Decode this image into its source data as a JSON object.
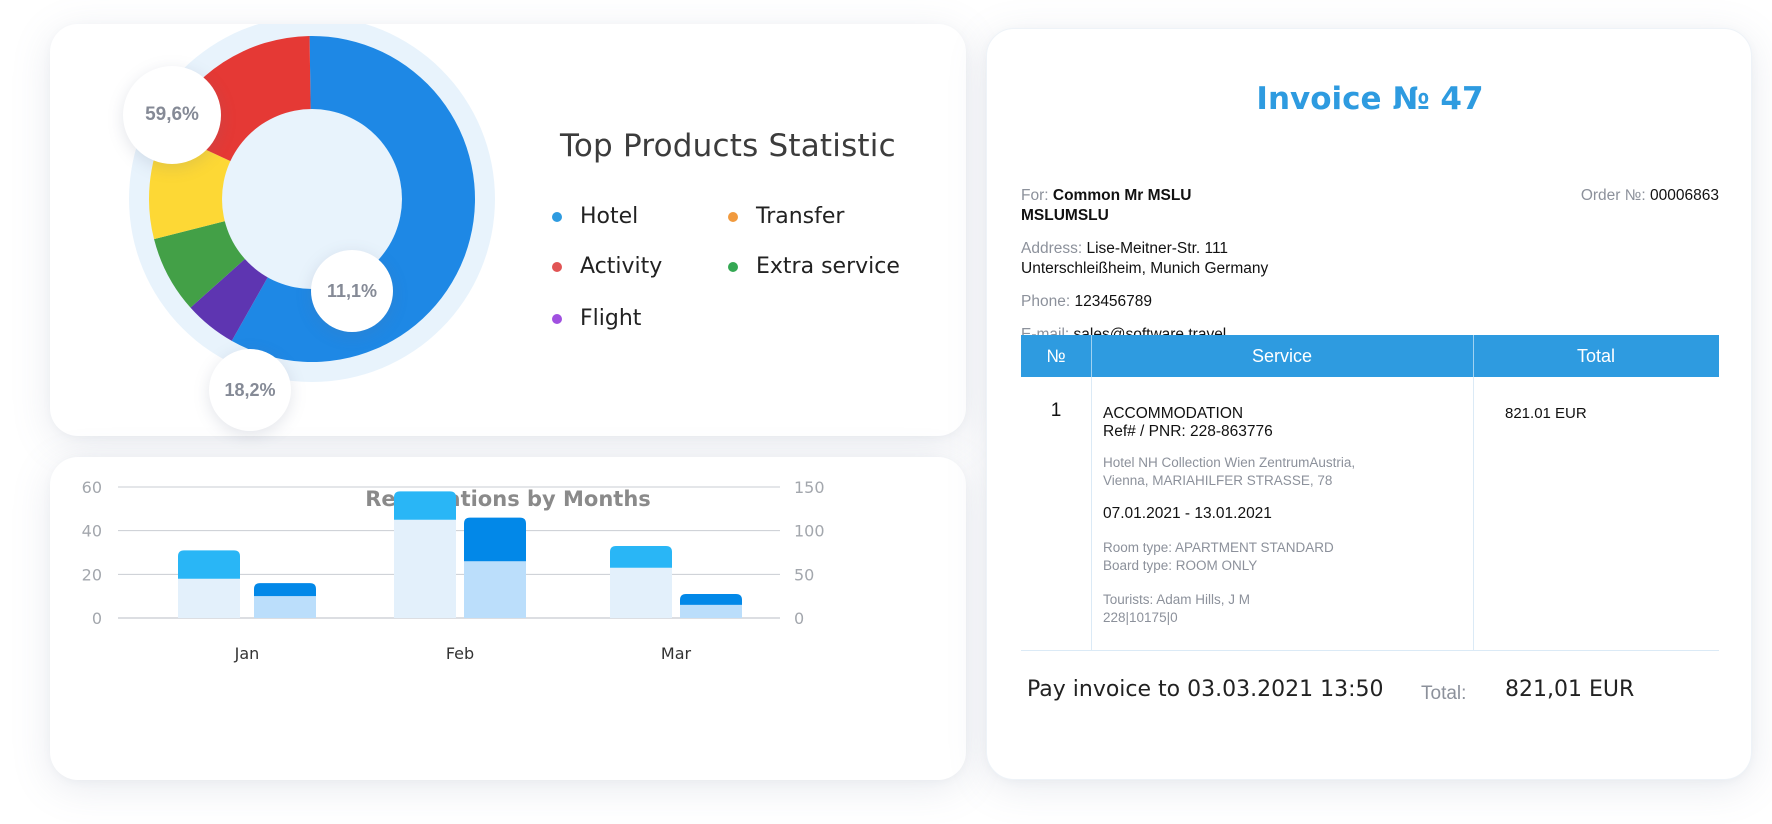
{
  "chart_data": [
    {
      "type": "pie",
      "title": "Top Products Statistic",
      "slices": [
        {
          "name": "Hotel",
          "value": 59.6,
          "color": "#1e88e5"
        },
        {
          "name": "Flight",
          "value": 5.3,
          "color": "#5e35b1"
        },
        {
          "name": "Extra service",
          "value": 7.8,
          "color": "#43a047"
        },
        {
          "name": "Transfer",
          "value": 11.1,
          "color": "#fdd835"
        },
        {
          "name": "Activity",
          "value": 18.2,
          "color": "#e53935"
        }
      ],
      "labels": [
        "59,6%",
        "11,1%",
        "18,2%"
      ],
      "legend": [
        {
          "label": "Hotel",
          "color": "#2e9be0"
        },
        {
          "label": "Transfer",
          "color": "#f19a3e"
        },
        {
          "label": "Activity",
          "color": "#e15454"
        },
        {
          "label": "Extra service",
          "color": "#34a853"
        },
        {
          "label": "Flight",
          "color": "#a050e0"
        }
      ],
      "legend_position": "right"
    },
    {
      "type": "bar",
      "title": "Reservations by Months",
      "categories": [
        "Jan",
        "Feb",
        "Mar"
      ],
      "stacked": true,
      "groups_per_category": 2,
      "series": [
        {
          "group": 1,
          "values": [
            18,
            45,
            23
          ],
          "color": "#e3f0fb"
        },
        {
          "group": 1,
          "values": [
            13,
            13,
            10
          ],
          "color": "#29b6f6"
        },
        {
          "group": 2,
          "values": [
            10,
            26,
            6
          ],
          "color": "#bbdefb"
        },
        {
          "group": 2,
          "values": [
            6,
            20,
            5
          ],
          "color": "#0288e8"
        }
      ],
      "y_left": {
        "range": [
          0,
          60
        ],
        "ticks": [
          "0",
          "20",
          "40",
          "60"
        ]
      },
      "y_right": {
        "range": [
          0,
          150
        ],
        "ticks": [
          "0",
          "50",
          "100",
          "150"
        ]
      },
      "grid": true
    }
  ],
  "invoice": {
    "title": "Invoice № 47",
    "for_label": "For:",
    "for_name": "Common Mr MSLU",
    "for_name2": "MSLUMSLU",
    "order_label": "Order №:",
    "order_value": "00006863",
    "address_label": "Address:",
    "address_line1": "Lise-Meitner-Str. 111",
    "address_line2": "Unterschleißheim, Munich Germany",
    "phone_label": "Phone:",
    "phone_value": "123456789",
    "email_label": "E-mail:",
    "email_value": "sales@software.travel",
    "headers": [
      "№",
      "Service",
      "Total"
    ],
    "row": {
      "num": "1",
      "service_name": "ACCOMMODATION",
      "ref": "Ref# / PNR: 228-863776",
      "hotel_line1": "Hotel NH Collection Wien ZentrumAustria,",
      "hotel_line2": "Vienna, MARIAHILFER STRASSE, 78",
      "dates": "07.01.2021 - 13.01.2021",
      "room_type": "Room type: APARTMENT STANDARD",
      "board_type": "Board type: ROOM ONLY",
      "tourists": "Tourists: Adam Hills, J M",
      "tourist_ids": "228|10175|0",
      "total": "821.01 EUR"
    },
    "pay_text": "Pay invoice to 03.03.2021 13:50",
    "total_label": "Total:",
    "total_value": "821,01 EUR"
  }
}
